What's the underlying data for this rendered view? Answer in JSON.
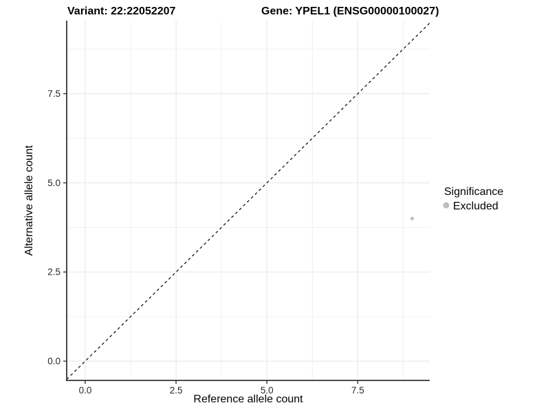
{
  "chart_data": {
    "type": "scatter",
    "title_left": "Variant: 22:22052207",
    "title_right": "Gene: YPEL1 (ENSG00000100027)",
    "xlabel": "Reference allele count",
    "ylabel": "Alternative allele count",
    "xlim": [
      -0.51,
      9.48
    ],
    "ylim": [
      -0.54,
      9.55
    ],
    "x_ticks": [
      0,
      2.5,
      5,
      7.5
    ],
    "x_tick_labels": [
      "0.0",
      "2.5",
      "5.0",
      "7.5"
    ],
    "y_ticks": [
      0,
      2.5,
      5,
      7.5
    ],
    "y_tick_labels": [
      "0.0",
      "2.5",
      "5.0",
      "7.5"
    ],
    "x_minor_ticks": [
      1.25,
      3.75,
      6.25,
      8.75
    ],
    "y_minor_ticks": [
      1.25,
      3.75,
      6.25,
      8.75
    ],
    "grid": "major+minor",
    "legend_position": "right",
    "series": [
      {
        "name": "Excluded",
        "color": "#bebebe",
        "points": [
          {
            "x": 9,
            "y": 4
          }
        ]
      }
    ],
    "reference_line": {
      "slope": 1,
      "intercept": 0,
      "style": "dashed",
      "color": "#000000"
    },
    "legend": {
      "title": "Significance",
      "items": [
        {
          "label": "Excluded",
          "color": "#bebebe"
        }
      ]
    }
  },
  "colors": {
    "background": "#ffffff",
    "grid_major": "#e5e5e5",
    "grid_minor": "#f0f0f0",
    "axis_line": "#333333",
    "axis_text": "#262626",
    "point": "#bebebe"
  }
}
